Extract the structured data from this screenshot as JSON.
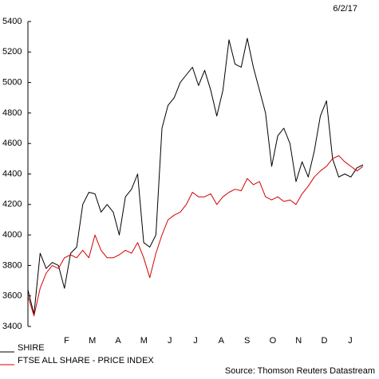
{
  "chart_data": {
    "type": "line",
    "date": "6/2/17",
    "source": "Source: Thomson Reuters Datastream",
    "x_labels": [
      "F",
      "M",
      "A",
      "M",
      "J",
      "J",
      "A",
      "S",
      "O",
      "N",
      "D",
      "J"
    ],
    "ylim": [
      3400,
      5400
    ],
    "yticks": [
      3400,
      3600,
      3800,
      4000,
      4200,
      4400,
      4600,
      4800,
      5000,
      5200,
      5400
    ],
    "series": [
      {
        "name": "SHIRE",
        "color": "#000000",
        "values": [
          3640,
          3480,
          3880,
          3780,
          3820,
          3800,
          3650,
          3880,
          3920,
          4200,
          4280,
          4270,
          4150,
          4200,
          4150,
          4000,
          4250,
          4300,
          4400,
          3950,
          3920,
          4000,
          4700,
          4850,
          4900,
          5000,
          5050,
          5100,
          4980,
          5080,
          4950,
          4780,
          4950,
          5280,
          5120,
          5100,
          5290,
          5100,
          4950,
          4800,
          4450,
          4650,
          4700,
          4600,
          4350,
          4480,
          4380,
          4550,
          4780,
          4880,
          4500,
          4380,
          4400,
          4380,
          4440,
          4460
        ]
      },
      {
        "name": "FTSE ALL SHARE - PRICE INDEX",
        "color": "#d40000",
        "values": [
          3600,
          3470,
          3650,
          3750,
          3800,
          3780,
          3850,
          3870,
          3850,
          3900,
          3850,
          4000,
          3900,
          3850,
          3850,
          3870,
          3900,
          3880,
          3950,
          3850,
          3720,
          3880,
          4000,
          4100,
          4130,
          4150,
          4200,
          4280,
          4250,
          4250,
          4270,
          4200,
          4250,
          4280,
          4300,
          4290,
          4370,
          4330,
          4350,
          4250,
          4230,
          4250,
          4220,
          4230,
          4200,
          4270,
          4320,
          4380,
          4420,
          4450,
          4500,
          4520,
          4480,
          4450,
          4420,
          4450
        ]
      }
    ]
  }
}
